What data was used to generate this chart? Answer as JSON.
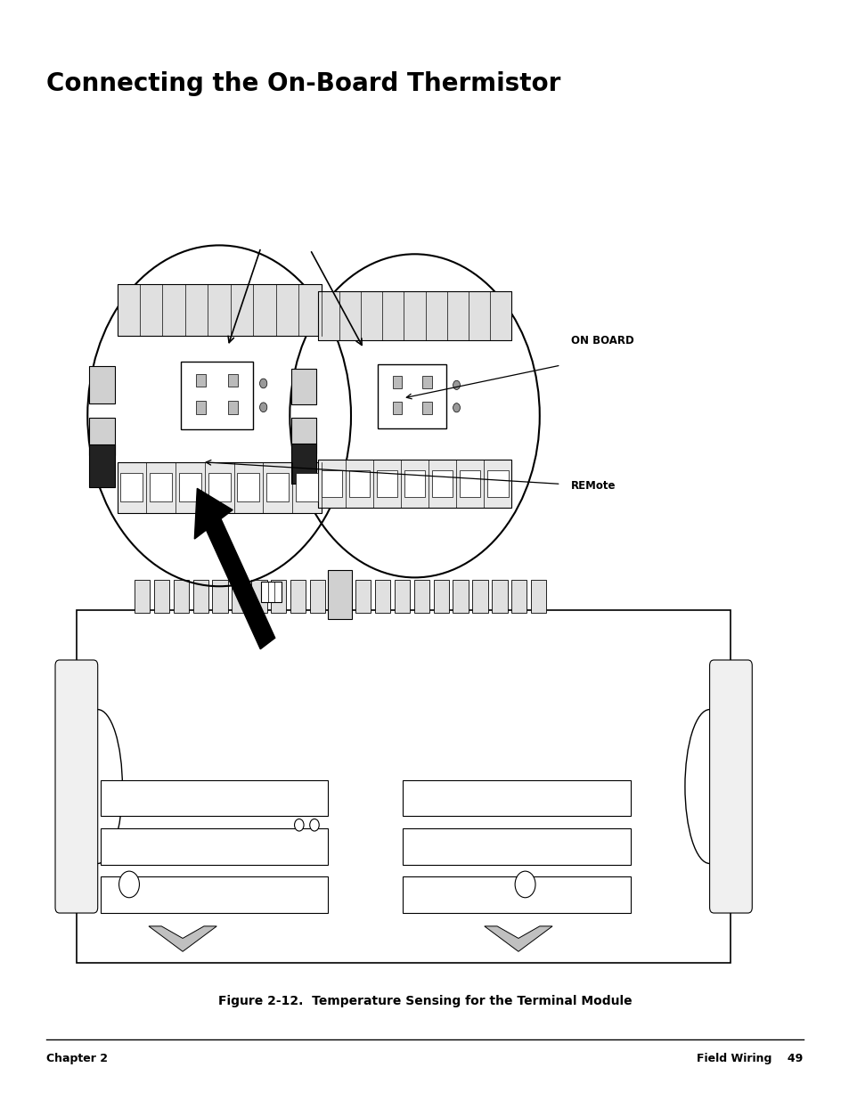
{
  "title": "Connecting the On-Board Thermistor",
  "figure_caption": "Figure 2-12.  Temperature Sensing for the Terminal Module",
  "footer_left": "Chapter 2",
  "footer_right": "Field Wiring    49",
  "label_on_board": "ON BOARD",
  "label_remote": "REMote",
  "bg_color": "#ffffff",
  "text_color": "#000000",
  "line_color": "#000000"
}
